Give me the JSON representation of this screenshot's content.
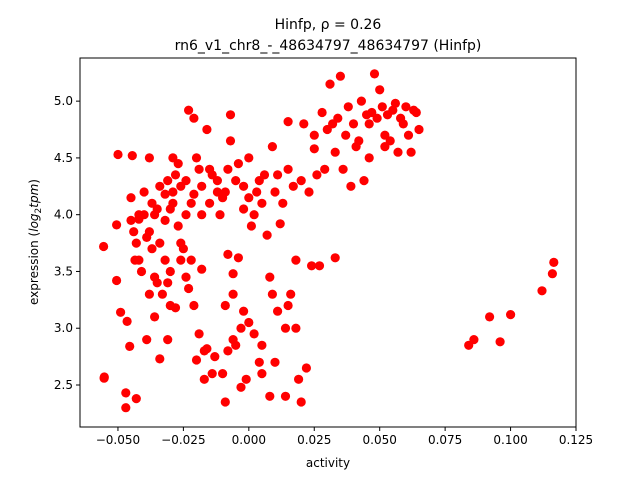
{
  "chart_data": {
    "type": "scatter",
    "title_line1": "Hinfp, ρ = 0.26",
    "title_line2": "rn6_v1_chr8_-_48634797_48634797 (Hinfp)",
    "xlabel": "activity",
    "ylabel_pre": "expression (",
    "ylabel_math": "log",
    "ylabel_sub": "2",
    "ylabel_math2": "tpm",
    "ylabel_post": ")",
    "xlim": [
      -0.0645,
      0.125
    ],
    "ylim": [
      2.13,
      5.38
    ],
    "xticks": [
      -0.05,
      -0.025,
      0.0,
      0.025,
      0.05,
      0.075,
      0.1,
      0.125
    ],
    "xtick_labels": [
      "−0.050",
      "−0.025",
      "0.000",
      "0.025",
      "0.050",
      "0.075",
      "0.100",
      "0.125"
    ],
    "yticks": [
      2.5,
      3.0,
      3.5,
      4.0,
      4.5,
      5.0
    ],
    "ytick_labels": [
      "2.5",
      "3.0",
      "3.5",
      "4.0",
      "4.5",
      "5.0"
    ],
    "grid": false,
    "marker_color": "#ff0000",
    "points": [
      [
        -0.0555,
        3.72
      ],
      [
        -0.0552,
        2.57
      ],
      [
        -0.0553,
        2.56
      ],
      [
        -0.0505,
        3.91
      ],
      [
        -0.0505,
        3.42
      ],
      [
        -0.05,
        4.53
      ],
      [
        -0.049,
        3.14
      ],
      [
        -0.047,
        2.43
      ],
      [
        -0.0465,
        3.06
      ],
      [
        -0.0455,
        2.84
      ],
      [
        -0.045,
        3.95
      ],
      [
        -0.0445,
        4.52
      ],
      [
        -0.045,
        4.15
      ],
      [
        -0.0435,
        3.6
      ],
      [
        -0.043,
        2.38
      ],
      [
        -0.042,
        3.96
      ],
      [
        -0.042,
        3.6
      ],
      [
        -0.043,
        3.75
      ],
      [
        -0.041,
        3.5
      ],
      [
        -0.04,
        4.0
      ],
      [
        -0.04,
        4.2
      ],
      [
        -0.039,
        3.8
      ],
      [
        -0.039,
        2.9
      ],
      [
        -0.038,
        4.5
      ],
      [
        -0.038,
        3.3
      ],
      [
        -0.037,
        3.7
      ],
      [
        -0.037,
        4.1
      ],
      [
        -0.036,
        3.1
      ],
      [
        -0.035,
        3.4
      ],
      [
        -0.035,
        4.05
      ],
      [
        -0.034,
        2.73
      ],
      [
        -0.034,
        3.75
      ],
      [
        -0.033,
        3.3
      ],
      [
        -0.032,
        4.18
      ],
      [
        -0.032,
        3.6
      ],
      [
        -0.031,
        4.3
      ],
      [
        -0.031,
        3.4
      ],
      [
        -0.03,
        3.2
      ],
      [
        -0.03,
        3.5
      ],
      [
        -0.029,
        4.1
      ],
      [
        -0.029,
        4.2
      ],
      [
        -0.028,
        3.18
      ],
      [
        -0.027,
        4.45
      ],
      [
        -0.027,
        3.9
      ],
      [
        -0.026,
        3.75
      ],
      [
        -0.025,
        3.7
      ],
      [
        -0.024,
        4.0
      ],
      [
        -0.024,
        4.3
      ],
      [
        -0.023,
        4.92
      ],
      [
        -0.023,
        3.35
      ],
      [
        -0.022,
        3.6
      ],
      [
        -0.021,
        4.85
      ],
      [
        -0.021,
        4.18
      ],
      [
        -0.02,
        2.72
      ],
      [
        -0.019,
        4.4
      ],
      [
        -0.018,
        3.52
      ],
      [
        -0.018,
        4.25
      ],
      [
        -0.017,
        2.55
      ],
      [
        -0.016,
        4.75
      ],
      [
        -0.016,
        2.82
      ],
      [
        -0.015,
        4.1
      ],
      [
        -0.014,
        4.35
      ],
      [
        -0.013,
        2.75
      ],
      [
        -0.012,
        4.2
      ],
      [
        -0.011,
        4.0
      ],
      [
        -0.01,
        2.6
      ],
      [
        -0.009,
        3.2
      ],
      [
        -0.009,
        2.35
      ],
      [
        -0.008,
        3.65
      ],
      [
        -0.008,
        2.8
      ],
      [
        -0.007,
        4.88
      ],
      [
        -0.007,
        4.65
      ],
      [
        -0.006,
        3.3
      ],
      [
        -0.006,
        3.48
      ],
      [
        -0.005,
        2.85
      ],
      [
        -0.004,
        4.45
      ],
      [
        -0.004,
        3.62
      ],
      [
        -0.003,
        3.0
      ],
      [
        -0.003,
        2.48
      ],
      [
        -0.002,
        4.25
      ],
      [
        -0.002,
        3.15
      ],
      [
        -0.001,
        2.55
      ],
      [
        0.0,
        3.05
      ],
      [
        0.0,
        4.15
      ],
      [
        0.001,
        3.9
      ],
      [
        0.002,
        2.95
      ],
      [
        0.003,
        4.2
      ],
      [
        0.004,
        2.7
      ],
      [
        0.005,
        2.6
      ],
      [
        0.006,
        4.35
      ],
      [
        0.007,
        3.82
      ],
      [
        0.008,
        3.45
      ],
      [
        0.009,
        4.6
      ],
      [
        0.009,
        3.3
      ],
      [
        0.01,
        2.7
      ],
      [
        0.011,
        3.15
      ],
      [
        0.012,
        3.92
      ],
      [
        0.013,
        4.1
      ],
      [
        0.014,
        3.0
      ],
      [
        0.014,
        2.4
      ],
      [
        0.015,
        4.82
      ],
      [
        0.016,
        3.3
      ],
      [
        0.017,
        4.25
      ],
      [
        0.018,
        3.6
      ],
      [
        0.019,
        2.55
      ],
      [
        0.02,
        4.3
      ],
      [
        0.021,
        4.8
      ],
      [
        0.022,
        2.65
      ],
      [
        0.023,
        4.2
      ],
      [
        0.024,
        3.55
      ],
      [
        0.025,
        4.58
      ],
      [
        0.026,
        4.35
      ],
      [
        0.027,
        3.55
      ],
      [
        0.028,
        4.9
      ],
      [
        0.029,
        4.4
      ],
      [
        0.03,
        4.75
      ],
      [
        0.031,
        5.15
      ],
      [
        0.032,
        4.8
      ],
      [
        0.033,
        3.62
      ],
      [
        0.034,
        4.85
      ],
      [
        0.035,
        5.22
      ],
      [
        0.036,
        4.4
      ],
      [
        0.037,
        4.7
      ],
      [
        0.038,
        4.95
      ],
      [
        0.039,
        4.25
      ],
      [
        0.04,
        4.8
      ],
      [
        0.041,
        4.6
      ],
      [
        0.042,
        4.65
      ],
      [
        0.043,
        5.0
      ],
      [
        0.044,
        4.3
      ],
      [
        0.045,
        4.88
      ],
      [
        0.046,
        4.5
      ],
      [
        0.047,
        4.9
      ],
      [
        0.048,
        5.24
      ],
      [
        0.049,
        4.85
      ],
      [
        0.05,
        5.1
      ],
      [
        0.051,
        4.95
      ],
      [
        0.052,
        4.7
      ],
      [
        0.053,
        4.88
      ],
      [
        0.054,
        4.65
      ],
      [
        0.055,
        4.92
      ],
      [
        0.056,
        4.98
      ],
      [
        0.057,
        4.55
      ],
      [
        0.058,
        4.85
      ],
      [
        0.059,
        4.8
      ],
      [
        0.06,
        4.95
      ],
      [
        0.061,
        4.7
      ],
      [
        0.062,
        4.55
      ],
      [
        0.063,
        4.92
      ],
      [
        0.064,
        4.9
      ],
      [
        0.065,
        4.75
      ],
      [
        -0.03,
        4.05
      ],
      [
        -0.028,
        4.35
      ],
      [
        -0.026,
        4.25
      ],
      [
        -0.022,
        4.1
      ],
      [
        -0.02,
        4.5
      ],
      [
        -0.018,
        4.0
      ],
      [
        -0.015,
        4.4
      ],
      [
        -0.012,
        4.3
      ],
      [
        -0.01,
        4.15
      ],
      [
        -0.005,
        4.3
      ],
      [
        -0.002,
        4.05
      ],
      [
        0.002,
        4.0
      ],
      [
        0.005,
        4.1
      ],
      [
        0.01,
        4.2
      ],
      [
        0.015,
        4.4
      ],
      [
        -0.032,
        3.95
      ],
      [
        -0.034,
        4.25
      ],
      [
        -0.036,
        4.0
      ],
      [
        -0.038,
        3.85
      ],
      [
        -0.026,
        3.6
      ],
      [
        -0.024,
        3.45
      ],
      [
        -0.021,
        3.2
      ],
      [
        -0.019,
        2.95
      ],
      [
        -0.017,
        2.8
      ],
      [
        -0.014,
        2.6
      ],
      [
        -0.006,
        2.9
      ],
      [
        0.005,
        2.85
      ],
      [
        0.018,
        3.0
      ],
      [
        0.015,
        3.2
      ],
      [
        0.008,
        2.4
      ],
      [
        0.02,
        2.35
      ],
      [
        0.084,
        2.85
      ],
      [
        0.086,
        2.9
      ],
      [
        0.092,
        3.1
      ],
      [
        0.096,
        2.88
      ],
      [
        0.1,
        3.12
      ],
      [
        0.112,
        3.33
      ],
      [
        0.116,
        3.48
      ],
      [
        0.1165,
        3.58
      ],
      [
        -0.009,
        4.2
      ],
      [
        -0.008,
        4.4
      ],
      [
        0.0,
        4.5
      ],
      [
        0.004,
        4.3
      ],
      [
        -0.042,
        4.0
      ],
      [
        -0.044,
        3.85
      ],
      [
        -0.036,
        3.45
      ],
      [
        -0.031,
        2.9
      ],
      [
        -0.047,
        2.3
      ],
      [
        -0.029,
        4.5
      ],
      [
        0.011,
        4.35
      ],
      [
        0.025,
        4.7
      ],
      [
        0.033,
        4.55
      ],
      [
        0.046,
        4.8
      ],
      [
        0.052,
        4.6
      ]
    ]
  }
}
